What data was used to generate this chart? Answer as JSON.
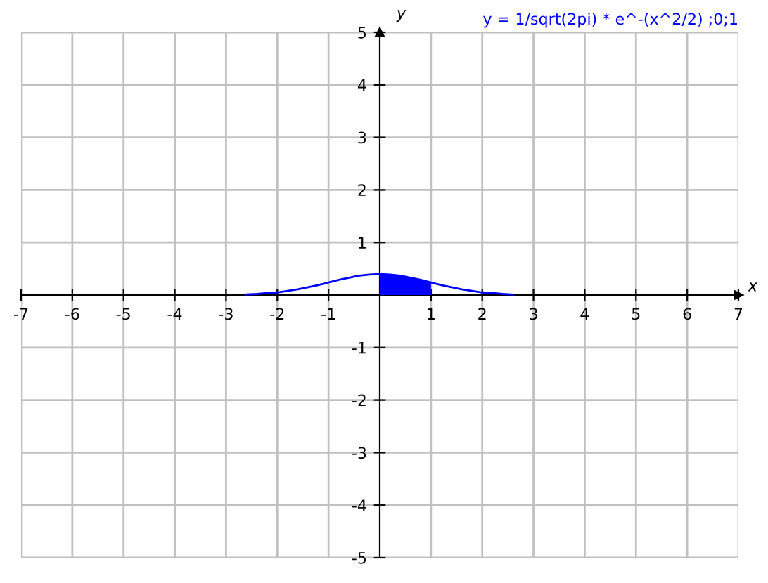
{
  "chart_data": {
    "type": "line",
    "title": "y = 1/sqrt(2pi) * e^-(x^2/2) ;0;1",
    "xlabel": "x",
    "ylabel": "y",
    "series": [
      {
        "color": "#0000ff",
        "x": [
          -2.6,
          -2.4,
          -2.2,
          -2,
          -1.8,
          -1.6,
          -1.4,
          -1.2,
          -1,
          -0.8,
          -0.6,
          -0.4,
          -0.2,
          0,
          0.2,
          0.4,
          0.6,
          0.8,
          1,
          1.2,
          1.4,
          1.6,
          1.8,
          2,
          2.2,
          2.4,
          2.6
        ],
        "values": [
          0.01,
          0.02,
          0.04,
          0.05,
          0.08,
          0.11,
          0.15,
          0.19,
          0.24,
          0.29,
          0.33,
          0.37,
          0.39,
          0.4,
          0.39,
          0.37,
          0.33,
          0.29,
          0.24,
          0.19,
          0.15,
          0.11,
          0.08,
          0.05,
          0.04,
          0.02,
          0.01
        ]
      },
      {
        "type": "area",
        "color": "#0000ff",
        "x": [
          0,
          0.2,
          0.4,
          0.6,
          0.8,
          1
        ],
        "values": [
          0.4,
          0.39,
          0.37,
          0.33,
          0.29,
          0.24
        ]
      }
    ],
    "xlim": [
      -7,
      7
    ],
    "ylim": [
      -5,
      5
    ],
    "xticks": [
      -7,
      -6,
      -5,
      -4,
      -3,
      -2,
      -1,
      1,
      2,
      3,
      4,
      5,
      6,
      7
    ],
    "yticks": [
      -5,
      -4,
      -3,
      -2,
      -1,
      1,
      2,
      3,
      4,
      5
    ],
    "grid": true
  }
}
